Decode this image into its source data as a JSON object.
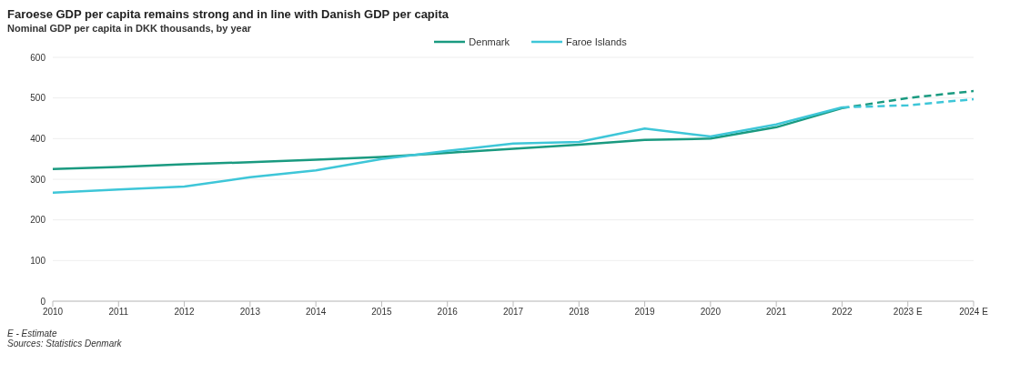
{
  "chart_data": {
    "type": "line",
    "title": "Faroese GDP per capita remains strong and in line with Danish GDP per capita",
    "subtitle": "Nominal GDP per capita in DKK thousands, by year",
    "categories": [
      "2010",
      "2011",
      "2012",
      "2013",
      "2014",
      "2015",
      "2016",
      "2017",
      "2018",
      "2019",
      "2020",
      "2021",
      "2022",
      "2023 E",
      "2024 E"
    ],
    "series": [
      {
        "name": "Denmark",
        "color": "#1a9a80",
        "line_style": "solid",
        "values": [
          325,
          330,
          337,
          342,
          348,
          355,
          365,
          375,
          385,
          397,
          400,
          428,
          475,
          null,
          null
        ]
      },
      {
        "name": "Faroe Islands",
        "color": "#3ec6d8",
        "line_style": "solid",
        "values": [
          267,
          275,
          282,
          305,
          322,
          350,
          370,
          388,
          392,
          425,
          405,
          435,
          477,
          null,
          null
        ]
      },
      {
        "color": "#1a9a80",
        "line_style": "dashed",
        "values": [
          null,
          null,
          null,
          null,
          null,
          null,
          null,
          null,
          null,
          null,
          null,
          null,
          475,
          500,
          517
        ]
      },
      {
        "color": "#3ec6d8",
        "line_style": "dashed",
        "values": [
          null,
          null,
          null,
          null,
          null,
          null,
          null,
          null,
          null,
          null,
          null,
          null,
          477,
          482,
          497
        ]
      }
    ],
    "ylim": [
      0,
      600
    ],
    "yticks": [
      0,
      100,
      200,
      300,
      400,
      500,
      600
    ],
    "grid": "y",
    "legend": "top",
    "marker": "none",
    "annotations": [
      "E - Estimate",
      "Sources: Statistics Denmark"
    ]
  }
}
